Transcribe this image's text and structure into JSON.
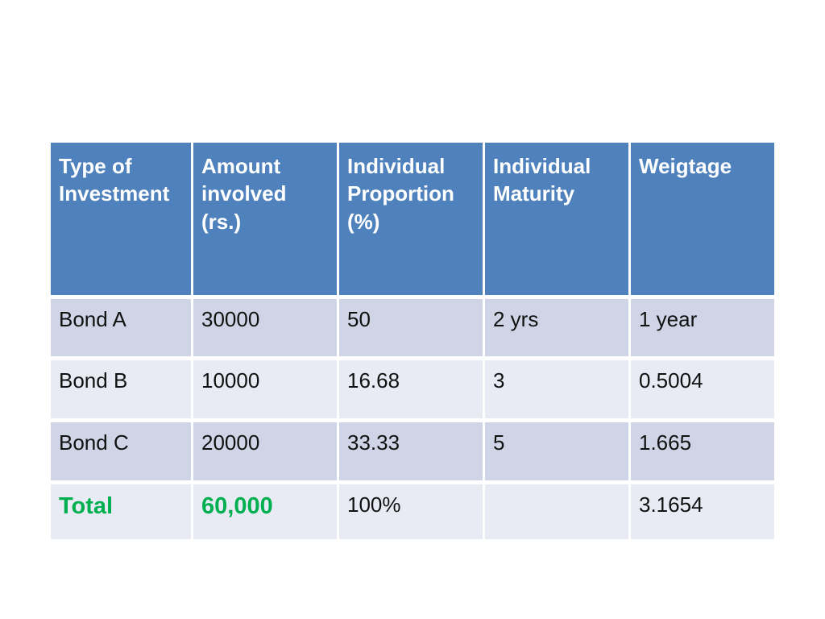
{
  "table": {
    "title_semantic": "bond-investment-weightage-table",
    "header": {
      "type_of_investment": "Type of Investment",
      "amount_involved": "Amount involved (rs.)",
      "individual_proportion": "Individual Proportion (%)",
      "individual_maturity": "Individual Maturity",
      "weightage": "Weigtage"
    },
    "rows": [
      [
        "Bond A",
        "30000",
        "50",
        "2 yrs",
        "1 year"
      ],
      [
        "Bond B",
        "10000",
        "16.68",
        "3",
        "0.5004"
      ],
      [
        "Bond C",
        "20000",
        "33.33",
        "5",
        "1.665"
      ],
      [
        "Total",
        "60,000",
        "100%",
        "",
        "3.1654"
      ]
    ],
    "colors": {
      "header_bg": "#4f81bd",
      "header_text": "#ffffff",
      "band_dark": "#cfd5e6",
      "band_light": "#e9ebf4",
      "body_text": "#111111",
      "total_accent": "#00b050"
    }
  }
}
